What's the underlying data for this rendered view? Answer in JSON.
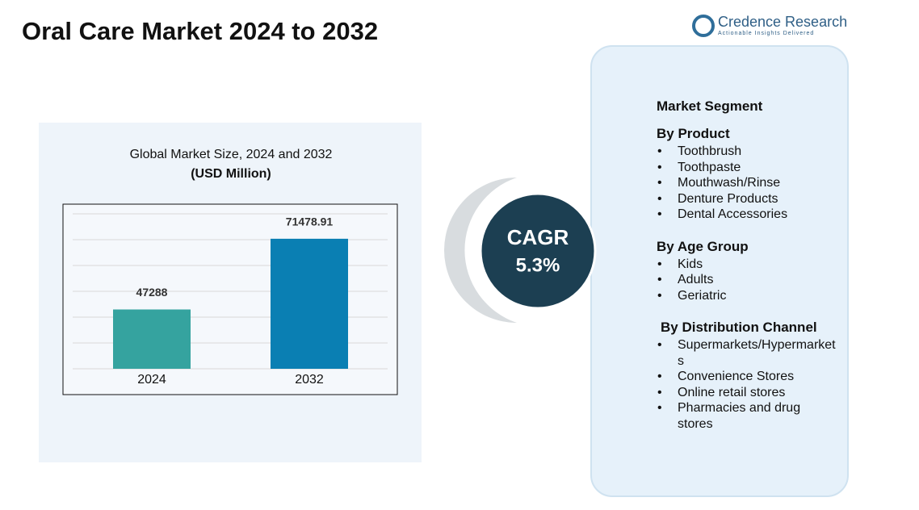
{
  "title": "Oral Care Market 2024 to 2032",
  "logo": {
    "name": "Credence Research",
    "tagline": "Actionable Insights Delivered"
  },
  "chart_data": {
    "type": "bar",
    "title": "Global Market Size, 2024 and 2032",
    "subtitle": "(USD Million)",
    "categories": [
      "2024",
      "2032"
    ],
    "values": [
      47288,
      71478.91
    ],
    "colors": [
      "#35a39f",
      "#0a7fb3"
    ],
    "ylim": [
      27000,
      80000
    ],
    "grid": true
  },
  "cagr": {
    "label": "CAGR",
    "value": "5.3%"
  },
  "segments": {
    "title": "Market Segment",
    "groups": [
      {
        "name": "By Product",
        "items": [
          "Toothbrush",
          "Toothpaste",
          "Mouthwash/Rinse",
          "Denture Products",
          "Dental Accessories"
        ]
      },
      {
        "name": "By Age Group",
        "items": [
          "Kids",
          "Adults",
          "Geriatric"
        ]
      },
      {
        "name": "By Distribution Channel",
        "items": [
          "Supermarkets/Hypermarkets",
          "Convenience Stores",
          "Online retail stores",
          "Pharmacies and drug stores"
        ]
      }
    ]
  }
}
